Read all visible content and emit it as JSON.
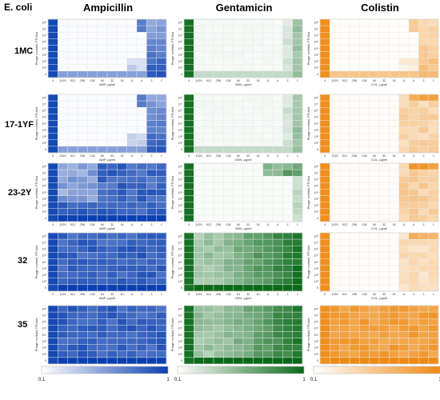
{
  "header": {
    "organism": "E. coli",
    "antibiotics": [
      "Ampicillin",
      "Gentamicin",
      "Colistin"
    ]
  },
  "colors": {
    "Ampicillin": "#0a3fb0",
    "Gentamicin": "#0a6a1a",
    "Colistin": "#ef8a12",
    "grid": "#dddddd",
    "marker": "#e23b3b"
  },
  "axes": {
    "x_ticks": [
      "0",
      "1024",
      "512",
      "256",
      "128",
      "64",
      "32",
      "16",
      "8",
      "4",
      "2",
      "1"
    ],
    "y_ticks": [
      "10⁸",
      "10⁷",
      "10⁶",
      "10⁵",
      "10⁴",
      "10³",
      "10²",
      "10¹",
      "0"
    ],
    "y_label": "Phage cocktail, PFU/ml",
    "x_labels": {
      "Ampicillin": "AMP, µg/ml",
      "Gentamicin": "GEN, µg/ml",
      "Colistin": "COL, µg/ml"
    }
  },
  "colorbar": {
    "min_label": "0.1",
    "max_label": "1"
  },
  "chart_data": {
    "type": "heatmap",
    "description_keys": "strains x antibiotics; cells = OD fraction 0.1-1",
    "strains": [
      "1MC",
      "17-1YF",
      "23-2Y",
      "32",
      "35"
    ],
    "panels": [
      {
        "strain": "1MC",
        "antibiotic": "Ampicillin",
        "pattern": "edge_right",
        "strength": 0.85
      },
      {
        "strain": "1MC",
        "antibiotic": "Gentamicin",
        "pattern": "edge_right_weak",
        "strength": 0.35
      },
      {
        "strain": "1MC",
        "antibiotic": "Colistin",
        "pattern": "edge_right",
        "strength": 0.55
      },
      {
        "strain": "17-1YF",
        "antibiotic": "Ampicillin",
        "pattern": "edge_right",
        "strength": 0.85
      },
      {
        "strain": "17-1YF",
        "antibiotic": "Gentamicin",
        "pattern": "edge_right_weak",
        "strength": 0.35
      },
      {
        "strain": "17-1YF",
        "antibiotic": "Colistin",
        "pattern": "right_block",
        "strength": 0.45
      },
      {
        "strain": "23-2Y",
        "antibiotic": "Ampicillin",
        "pattern": "mostly_full",
        "strength": 0.9
      },
      {
        "strain": "23-2Y",
        "antibiotic": "Gentamicin",
        "pattern": "top_right",
        "strength": 0.7
      },
      {
        "strain": "23-2Y",
        "antibiotic": "Colistin",
        "pattern": "right_block",
        "strength": 0.5
      },
      {
        "strain": "32",
        "antibiotic": "Ampicillin",
        "pattern": "full",
        "strength": 0.9
      },
      {
        "strain": "32",
        "antibiotic": "Gentamicin",
        "pattern": "gradient_left_light",
        "strength": 0.9
      },
      {
        "strain": "32",
        "antibiotic": "Colistin",
        "pattern": "right_block",
        "strength": 0.35
      },
      {
        "strain": "35",
        "antibiotic": "Ampicillin",
        "pattern": "full",
        "strength": 0.9
      },
      {
        "strain": "35",
        "antibiotic": "Gentamicin",
        "pattern": "gradient_left_light",
        "strength": 0.85
      },
      {
        "strain": "35",
        "antibiotic": "Colistin",
        "pattern": "full",
        "strength": 0.9
      }
    ]
  }
}
